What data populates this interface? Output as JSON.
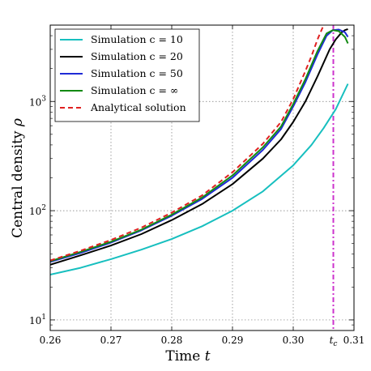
{
  "chart_data": {
    "type": "line",
    "title": "",
    "xlabel": "Time",
    "xlabel_symbol": "t",
    "ylabel": "Central density",
    "ylabel_symbol": "ρ",
    "xlim": [
      0.26,
      0.31
    ],
    "ylim": [
      8,
      5000
    ],
    "yscale": "log",
    "grid": true,
    "legend_position": "top-left",
    "x_ticks": [
      0.26,
      0.27,
      0.28,
      0.29,
      0.3,
      0.31
    ],
    "x_tick_labels": [
      "0.26",
      "0.27",
      "0.28",
      "0.29",
      "0.30",
      "0.31"
    ],
    "y_ticks": [
      10,
      100,
      1000
    ],
    "y_tick_bases": [
      "10",
      "10",
      "10"
    ],
    "y_tick_exponents": [
      "1",
      "2",
      "3"
    ],
    "tc": {
      "value": 0.3066,
      "label": "t",
      "label_subscript": "c",
      "color": "#cc33cc"
    },
    "series": [
      {
        "name": "Simulation c = 10",
        "color": "#17bfbf",
        "style": "solid",
        "x": [
          0.26,
          0.265,
          0.27,
          0.275,
          0.28,
          0.285,
          0.29,
          0.295,
          0.3,
          0.303,
          0.305,
          0.307,
          0.309
        ],
        "y": [
          26,
          30,
          36,
          44,
          55,
          72,
          100,
          150,
          260,
          400,
          570,
          850,
          1450
        ]
      },
      {
        "name": "Simulation c = 20",
        "color": "#000000",
        "style": "solid",
        "x": [
          0.26,
          0.265,
          0.27,
          0.275,
          0.28,
          0.285,
          0.29,
          0.295,
          0.298,
          0.3,
          0.302,
          0.304,
          0.306,
          0.307,
          0.308,
          0.3085,
          0.309
        ],
        "y": [
          32,
          39,
          48,
          61,
          82,
          115,
          175,
          300,
          450,
          650,
          1000,
          1700,
          3000,
          3700,
          4300,
          4500,
          4600
        ]
      },
      {
        "name": "Simulation c = 50",
        "color": "#1f2bd6",
        "style": "solid",
        "x": [
          0.26,
          0.265,
          0.27,
          0.275,
          0.28,
          0.285,
          0.29,
          0.295,
          0.298,
          0.3,
          0.302,
          0.304,
          0.3055,
          0.3065,
          0.3075,
          0.3085,
          0.309
        ],
        "y": [
          34,
          41,
          51,
          66,
          90,
          128,
          200,
          360,
          560,
          900,
          1500,
          2700,
          4000,
          4500,
          4550,
          4300,
          3900
        ]
      },
      {
        "name": "Simulation c = ∞",
        "color": "#138a13",
        "style": "solid",
        "x": [
          0.26,
          0.265,
          0.27,
          0.275,
          0.28,
          0.285,
          0.29,
          0.295,
          0.298,
          0.3,
          0.302,
          0.304,
          0.3055,
          0.3065,
          0.3075,
          0.3085,
          0.309
        ],
        "y": [
          34.5,
          42,
          52,
          67,
          92,
          132,
          210,
          380,
          590,
          950,
          1600,
          2900,
          4200,
          4500,
          4400,
          3900,
          3400
        ]
      },
      {
        "name": "Analytical solution",
        "color": "#e02020",
        "style": "dashed",
        "x": [
          0.26,
          0.265,
          0.27,
          0.275,
          0.28,
          0.285,
          0.29,
          0.295,
          0.298,
          0.3,
          0.302,
          0.303,
          0.304,
          0.305
        ],
        "y": [
          35,
          43,
          54,
          70,
          96,
          138,
          225,
          410,
          650,
          1050,
          1900,
          2600,
          3700,
          5000
        ]
      }
    ]
  }
}
